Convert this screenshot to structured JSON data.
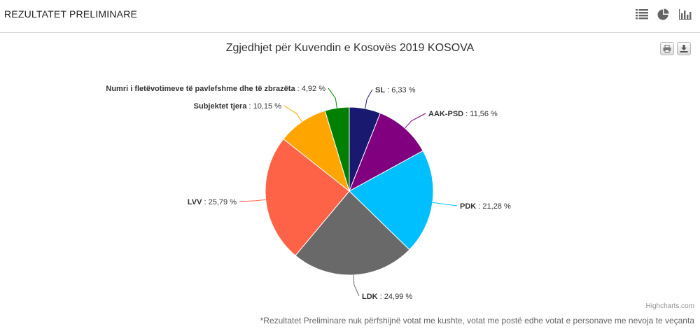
{
  "header": {
    "title": "REZULTATET PRELIMINARE"
  },
  "toolbar": {
    "icons": [
      "list-view-icon",
      "pie-view-icon",
      "bar-view-icon"
    ]
  },
  "chart_data": {
    "type": "pie",
    "title": "Zgjedhjet për Kuvendin e Kosovës 2019 KOSOVA",
    "slices": [
      {
        "name": "SL",
        "value": 6.33,
        "label": "6,33 %",
        "color": "#191970"
      },
      {
        "name": "AAK-PSD",
        "value": 11.56,
        "label": "11,56 %",
        "color": "#800080"
      },
      {
        "name": "PDK",
        "value": 21.28,
        "label": "21,28 %",
        "color": "#00bfff"
      },
      {
        "name": "LDK",
        "value": 24.99,
        "label": "24,99 %",
        "color": "#696969"
      },
      {
        "name": "LVV",
        "value": 25.79,
        "label": "25,79 %",
        "color": "#ff6347"
      },
      {
        "name": "Subjektet tjera",
        "value": 10.15,
        "label": "10,15 %",
        "color": "#ffa500"
      },
      {
        "name": "Numri i fletëvotimeve të pavlefshme dhe të zbrazëta",
        "value": 4.92,
        "label": "4,92 %",
        "color": "#008000"
      }
    ]
  },
  "credits": "Highcharts.com",
  "footnote": "*Rezultatet Preliminare nuk përfshijnë votat me kushte, votat me postë edhe votat e personave me nevoja te veçanta"
}
